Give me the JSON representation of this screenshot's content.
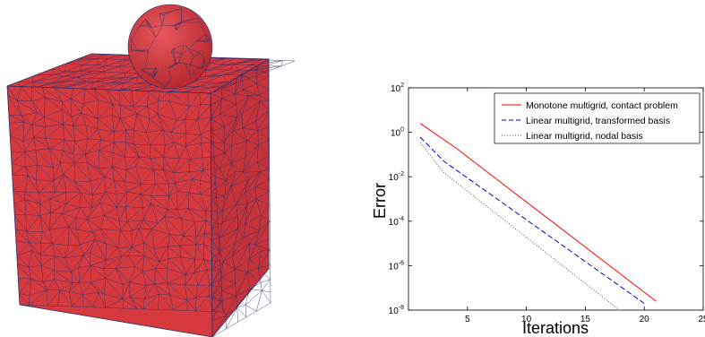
{
  "mesh_figure": {
    "face_color": "#d63a3f",
    "edge_color": "#2b2f66"
  },
  "chart_data": {
    "type": "line",
    "title": "",
    "xlabel": "Iterations",
    "ylabel": "Error",
    "xlim": [
      0,
      25
    ],
    "ylim_exponent": [
      -8,
      2
    ],
    "y_scale": "log",
    "x_ticks": [
      "5",
      "10",
      "15",
      "20",
      "25"
    ],
    "x_tick_values": [
      5,
      10,
      15,
      20,
      25
    ],
    "y_ticks": [
      {
        "base": "10",
        "exp": "2"
      },
      {
        "base": "10",
        "exp": "0"
      },
      {
        "base": "10",
        "exp": "-2"
      },
      {
        "base": "10",
        "exp": "-4"
      },
      {
        "base": "10",
        "exp": "-6"
      },
      {
        "base": "10",
        "exp": "-8"
      }
    ],
    "y_tick_exponents": [
      2,
      0,
      -2,
      -4,
      -6,
      -8
    ],
    "legend_position": "top-right",
    "series": [
      {
        "name": "Monotone multigrid, contact problem",
        "color": "#ff0000",
        "dash": "solid",
        "x": [
          1,
          4,
          21
        ],
        "y": [
          2.5,
          0.2,
          2.5e-08
        ]
      },
      {
        "name": "Linear multigrid, transformed basis",
        "color": "#0000cc",
        "dash": "dashed",
        "x": [
          1,
          3,
          20
        ],
        "y": [
          0.6,
          0.05,
          2e-08
        ]
      },
      {
        "name": "Linear multigrid, nodal basis",
        "color": "#555555",
        "dash": "dotted",
        "x": [
          1,
          3,
          18
        ],
        "y": [
          0.35,
          0.015,
          9e-09
        ]
      }
    ]
  }
}
